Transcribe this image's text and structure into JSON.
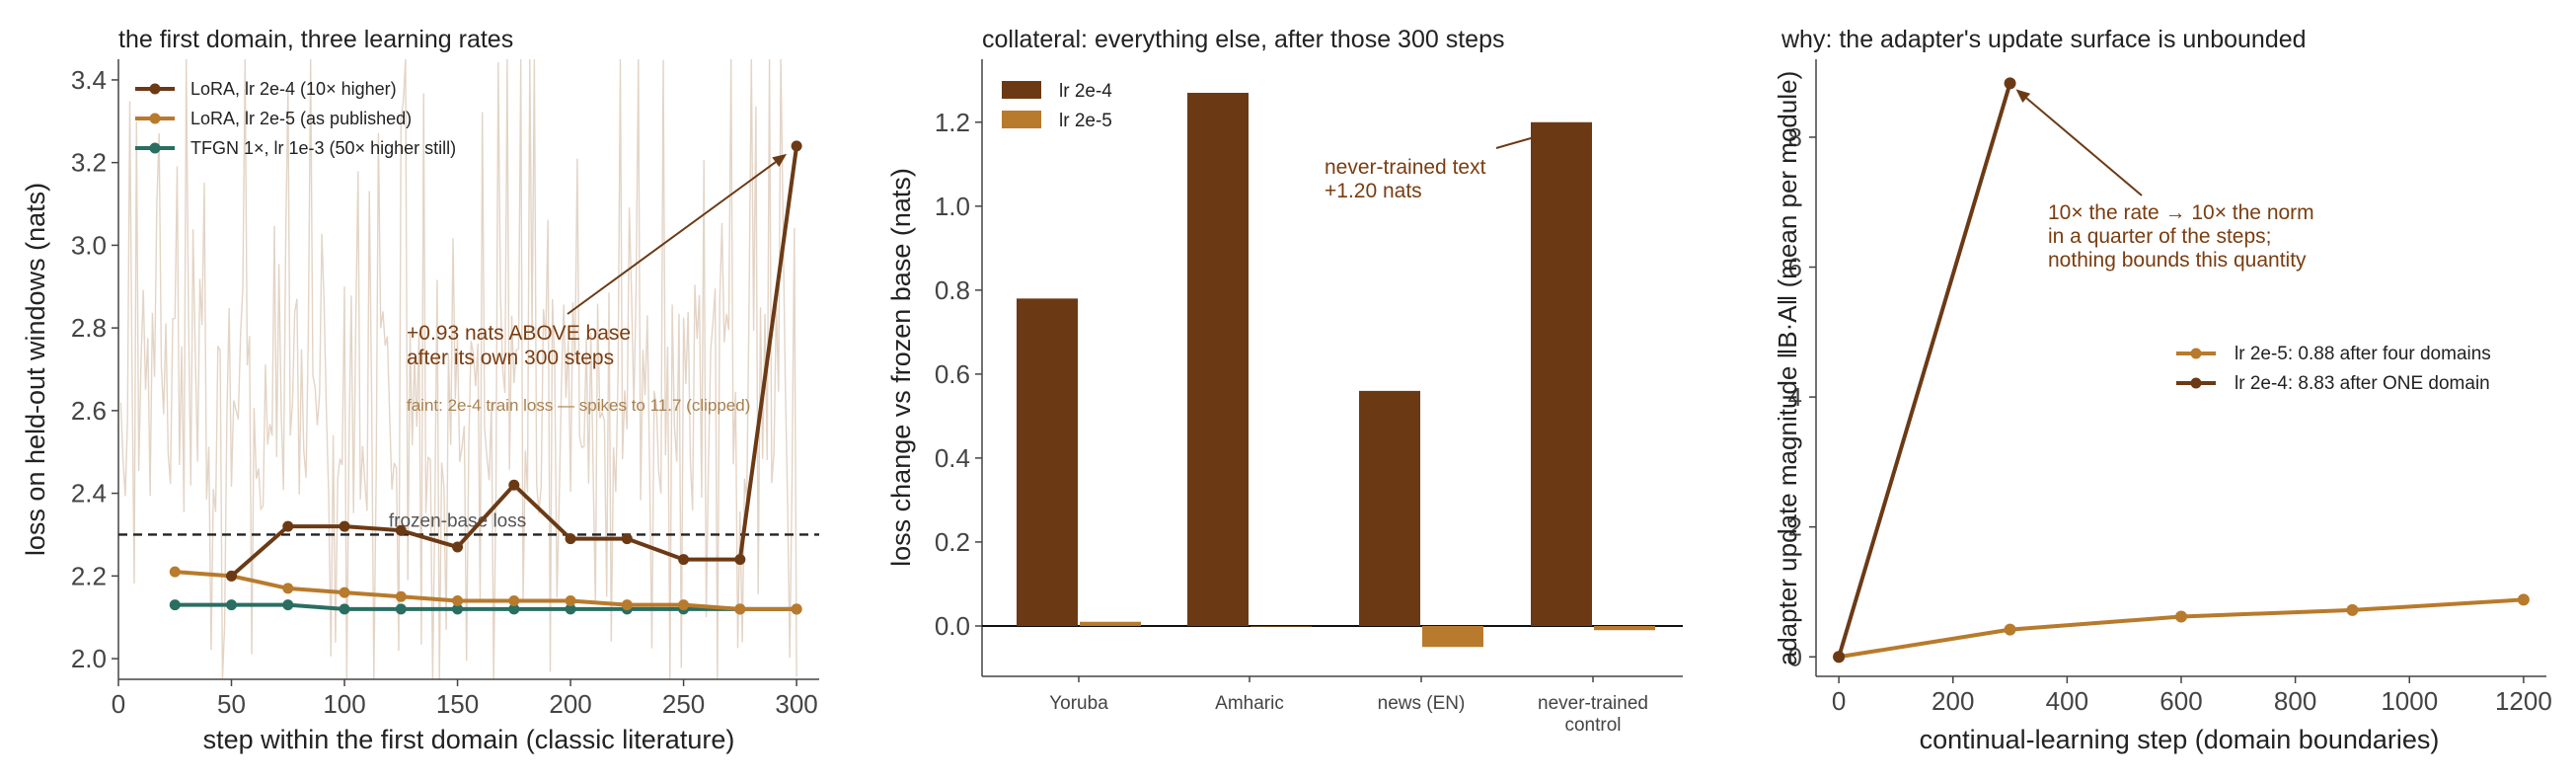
{
  "colors": {
    "lr_2e4": "#6b3a15",
    "lr_2e5": "#b87a2c",
    "tfgn": "#2a6e62",
    "trainloss": "#e3d4c6",
    "baseline": "#222222",
    "axis": "#444444",
    "text": "#222222"
  },
  "chart_data": [
    {
      "type": "line",
      "title": "the first domain, three learning rates",
      "xlabel": "step within the first domain (classic literature)",
      "ylabel": "loss on held-out windows (nats)",
      "xlim": [
        0,
        310
      ],
      "ylim": [
        1.95,
        3.45
      ],
      "xticks": [
        0,
        50,
        100,
        150,
        200,
        250,
        300
      ],
      "yticks": [
        2.0,
        2.2,
        2.4,
        2.6,
        2.8,
        3.0,
        3.2,
        3.4
      ],
      "legend_position": "top-left",
      "grid": false,
      "series": [
        {
          "name": "LoRA, lr 2e-4 (10× higher)",
          "color_key": "lr_2e4",
          "x": [
            50,
            75,
            100,
            125,
            150,
            175,
            200,
            225,
            250,
            275,
            300
          ],
          "y": [
            2.2,
            2.32,
            2.32,
            2.31,
            2.27,
            2.42,
            2.29,
            2.29,
            2.24,
            2.24,
            3.24
          ]
        },
        {
          "name": "LoRA, lr 2e-5 (as published)",
          "color_key": "lr_2e5",
          "x": [
            25,
            50,
            75,
            100,
            125,
            150,
            175,
            200,
            225,
            250,
            275,
            300
          ],
          "y": [
            2.21,
            2.2,
            2.17,
            2.16,
            2.15,
            2.14,
            2.14,
            2.14,
            2.13,
            2.13,
            2.12,
            2.12
          ]
        },
        {
          "name": "TFGN 1×, lr 1e-3 (50× higher still)",
          "color_key": "tfgn",
          "x": [
            25,
            50,
            75,
            100,
            125,
            150,
            175,
            200,
            225,
            250,
            275,
            300
          ],
          "y": [
            2.13,
            2.13,
            2.13,
            2.12,
            2.12,
            2.12,
            2.12,
            2.12,
            2.12,
            2.12,
            2.12,
            2.12
          ]
        }
      ],
      "baseline": {
        "y": 2.3,
        "label": "frozen-base loss"
      },
      "annotations": [
        {
          "text": [
            "+0.93 nats ABOVE base",
            "after its own 300 steps"
          ],
          "arrow_to": [
            300,
            3.24
          ]
        },
        {
          "text": [
            "faint: 2e-4 train loss — spikes to 11.7 (clipped)"
          ]
        }
      ],
      "train_loss_note": "faint background series, clipped at top of axis"
    },
    {
      "type": "bar",
      "title": "collateral: everything else, after those 300 steps",
      "xlabel": "",
      "ylabel": "loss change vs frozen base (nats)",
      "ylim": [
        -0.12,
        1.35
      ],
      "yticks": [
        0.0,
        0.2,
        0.4,
        0.6,
        0.8,
        1.0,
        1.2
      ],
      "categories": [
        "Yoruba",
        "Amharic",
        "news (EN)",
        "never-trained control"
      ],
      "category_lines": [
        [
          "Yoruba"
        ],
        [
          "Amharic"
        ],
        [
          "news (EN)"
        ],
        [
          "never-trained",
          "control"
        ]
      ],
      "legend_position": "top-left",
      "series": [
        {
          "name": "lr 2e-4",
          "color_key": "lr_2e4",
          "values": [
            0.78,
            1.27,
            0.56,
            1.2
          ]
        },
        {
          "name": "lr 2e-5",
          "color_key": "lr_2e5",
          "values": [
            0.01,
            0.0,
            -0.05,
            -0.01
          ]
        }
      ],
      "annotations": [
        {
          "text": [
            "never-trained text",
            "+1.20 nats"
          ],
          "arrow_to_category": 3,
          "arrow_to_value": 1.2
        }
      ]
    },
    {
      "type": "line",
      "title": "why: the adapter's update surface is unbounded",
      "xlabel": "continual-learning step (domain boundaries)",
      "ylabel": "adapter update magnitude  ‖B·A‖  (mean per module)",
      "xlim": [
        -40,
        1240
      ],
      "ylim": [
        -0.3,
        9.2
      ],
      "xticks": [
        0,
        200,
        400,
        600,
        800,
        1000,
        1200
      ],
      "yticks": [
        0,
        2,
        4,
        6,
        8
      ],
      "legend_position": "center-right",
      "series": [
        {
          "name": "lr 2e-5: 0.88 after four domains",
          "color_key": "lr_2e5",
          "x": [
            0,
            300,
            600,
            900,
            1200
          ],
          "y": [
            0,
            0.42,
            0.62,
            0.72,
            0.88
          ]
        },
        {
          "name": "lr 2e-4: 8.83 after ONE domain",
          "color_key": "lr_2e4",
          "x": [
            0,
            300
          ],
          "y": [
            0,
            8.83
          ]
        }
      ],
      "annotations": [
        {
          "text": [
            "10× the rate → 10× the norm",
            "in a quarter of the steps;",
            "nothing bounds this quantity"
          ],
          "arrow_to": [
            300,
            8.83
          ]
        }
      ]
    }
  ]
}
